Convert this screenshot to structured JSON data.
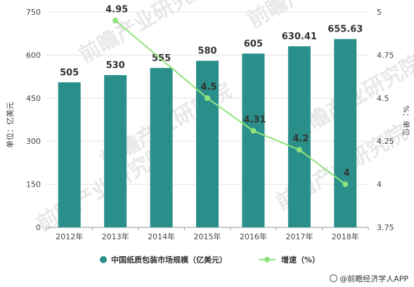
{
  "chart_data": {
    "type": "bar+line",
    "categories": [
      "2012年",
      "2013年",
      "2014年",
      "2015年",
      "2016年",
      "2017年",
      "2018年"
    ],
    "series": [
      {
        "name": "中国纸质包装市场规模（亿美元）",
        "type": "bar",
        "axis": "left",
        "values": [
          505,
          530,
          555,
          580,
          605,
          630.41,
          655.63
        ],
        "labels": [
          "505",
          "530",
          "555",
          "580",
          "605",
          "630.41",
          "655.63"
        ]
      },
      {
        "name": "增速（%）",
        "type": "line",
        "axis": "right",
        "values": [
          null,
          4.95,
          null,
          4.5,
          4.31,
          4.2,
          4
        ],
        "labels": [
          "",
          "4.95",
          "",
          "4.5",
          "4.31",
          "4.2",
          "4"
        ]
      }
    ],
    "ylabel": "单位：亿美元",
    "y2label": "%：单位",
    "ylim": [
      0,
      750
    ],
    "yticks": [
      "0",
      "150",
      "300",
      "450",
      "600",
      "750"
    ],
    "y2lim": [
      3.75,
      5
    ],
    "y2ticks": [
      "3.75",
      "4",
      "4.25",
      "4.5",
      "4.75",
      "5"
    ],
    "grid": true,
    "legend": "bottom",
    "colors": {
      "bar": "#2a8f8a",
      "line": "#90e37a"
    }
  },
  "watermark": "前瞻产业研究院",
  "source": "@前瞻经济学人APP"
}
